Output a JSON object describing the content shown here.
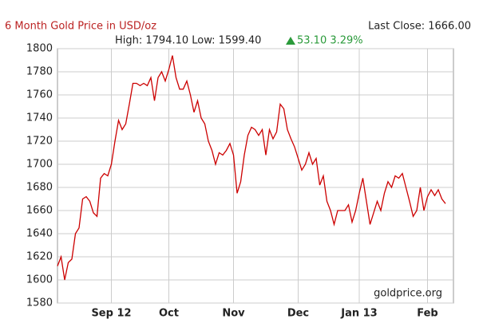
{
  "chart_data": {
    "type": "line",
    "title": "6 Month Gold Price in USD/oz",
    "last_close": "Last Close: 1666.00",
    "subtitle": "High: 1794.10 Low: 1599.40",
    "change": "53.10 3.29%",
    "source": "goldprice.org",
    "color": "#cc0000",
    "grid": true,
    "ylim": [
      1580,
      1800
    ],
    "yticks": [
      1580,
      1600,
      1620,
      1640,
      1660,
      1680,
      1700,
      1720,
      1740,
      1760,
      1780,
      1800
    ],
    "categories": [
      null,
      null,
      null,
      null,
      null,
      null,
      null,
      null,
      null,
      null,
      null,
      null,
      null,
      null,
      null,
      "Sep 12",
      null,
      null,
      null,
      null,
      null,
      null,
      null,
      null,
      null,
      null,
      null,
      null,
      null,
      null,
      null,
      "Oct",
      null,
      null,
      null,
      null,
      null,
      null,
      null,
      null,
      null,
      null,
      null,
      null,
      null,
      null,
      null,
      null,
      null,
      "Nov",
      null,
      null,
      null,
      null,
      null,
      null,
      null,
      null,
      null,
      null,
      null,
      null,
      null,
      null,
      null,
      null,
      null,
      "Dec",
      null,
      null,
      null,
      null,
      null,
      null,
      null,
      null,
      null,
      null,
      null,
      null,
      null,
      null,
      null,
      null,
      "Jan 13",
      null,
      null,
      null,
      null,
      null,
      null,
      null,
      null,
      null,
      null,
      null,
      null,
      null,
      null,
      null,
      null,
      null,
      null,
      "Feb",
      null,
      null,
      null,
      null,
      null
    ],
    "values": [
      1612,
      1620,
      1600,
      1615,
      1618,
      1640,
      1645,
      1670,
      1672,
      1668,
      1658,
      1655,
      1688,
      1692,
      1690,
      1700,
      1720,
      1738,
      1730,
      1735,
      1752,
      1770,
      1770,
      1768,
      1770,
      1768,
      1775,
      1755,
      1775,
      1780,
      1772,
      1782,
      1794.1,
      1775,
      1765,
      1765,
      1772,
      1760,
      1745,
      1755,
      1740,
      1735,
      1720,
      1712,
      1700,
      1710,
      1708,
      1712,
      1718,
      1708,
      1675,
      1685,
      1708,
      1725,
      1732,
      1730,
      1725,
      1730,
      1708,
      1730,
      1722,
      1728,
      1752,
      1748,
      1730,
      1722,
      1715,
      1705,
      1695,
      1700,
      1710,
      1700,
      1705,
      1682,
      1690,
      1668,
      1660,
      1648,
      1660,
      1660,
      1660,
      1665,
      1650,
      1660,
      1675,
      1688,
      1668,
      1648,
      1658,
      1668,
      1660,
      1675,
      1685,
      1680,
      1690,
      1688,
      1692,
      1680,
      1668,
      1655,
      1660,
      1680,
      1660,
      1672,
      1678,
      1673,
      1678,
      1670,
      1666
    ]
  }
}
